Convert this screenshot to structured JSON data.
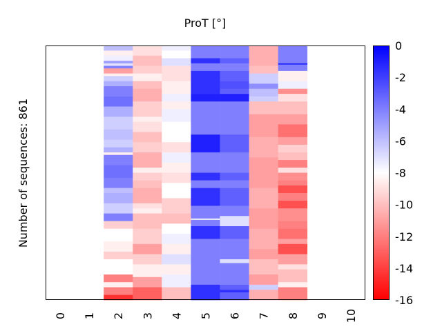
{
  "chart_data": {
    "type": "heatmap",
    "title": "ProT [°]",
    "ylabel": "Number of sequences: 861",
    "xlabel": "",
    "n_rows": 861,
    "x_ticks": [
      "0",
      "1",
      "2",
      "3",
      "4",
      "5",
      "6",
      "7",
      "8",
      "9",
      "10"
    ],
    "colorbar": {
      "ticks": [
        "0",
        "-2",
        "-4",
        "-6",
        "-8",
        "-10",
        "-12",
        "-14",
        "-16"
      ],
      "range": [
        -16,
        0
      ],
      "colormap": "bwr",
      "low_color": "#ff0000",
      "mid_color": "#ffffff",
      "high_color": "#0000ff"
    },
    "columns": [
      {
        "x": 2,
        "segments": [
          [
            0.0,
            -6.0
          ],
          [
            0.02,
            -8.5
          ],
          [
            0.04,
            -7.5
          ],
          [
            0.06,
            -5.0
          ],
          [
            0.07,
            -7.0
          ],
          [
            0.08,
            -4.0
          ],
          [
            0.09,
            -11.0
          ],
          [
            0.11,
            -8.5
          ],
          [
            0.12,
            -6.5
          ],
          [
            0.14,
            -5.5
          ],
          [
            0.16,
            -4.0
          ],
          [
            0.2,
            -3.5
          ],
          [
            0.24,
            -5.5
          ],
          [
            0.28,
            -6.5
          ],
          [
            0.33,
            -6.0
          ],
          [
            0.37,
            -6.5
          ],
          [
            0.4,
            -5.5
          ],
          [
            0.42,
            -8.5
          ],
          [
            0.43,
            -4.0
          ],
          [
            0.47,
            -3.5
          ],
          [
            0.52,
            -4.0
          ],
          [
            0.56,
            -6.0
          ],
          [
            0.58,
            -5.5
          ],
          [
            0.62,
            -6.5
          ],
          [
            0.66,
            -4.0
          ],
          [
            0.69,
            -9.5
          ],
          [
            0.72,
            -8.0
          ],
          [
            0.77,
            -8.5
          ],
          [
            0.81,
            -9.5
          ],
          [
            0.84,
            -8.0
          ],
          [
            0.9,
            -12.0
          ],
          [
            0.93,
            -8.5
          ],
          [
            0.95,
            -12.0
          ],
          [
            0.98,
            -14.5
          ]
        ]
      },
      {
        "x": 3,
        "segments": [
          [
            0.0,
            -9.0
          ],
          [
            0.04,
            -10.0
          ],
          [
            0.08,
            -9.5
          ],
          [
            0.11,
            -8.5
          ],
          [
            0.14,
            -10.0
          ],
          [
            0.17,
            -10.5
          ],
          [
            0.22,
            -9.5
          ],
          [
            0.28,
            -8.5
          ],
          [
            0.3,
            -9.0
          ],
          [
            0.34,
            -10.0
          ],
          [
            0.38,
            -9.5
          ],
          [
            0.42,
            -10.5
          ],
          [
            0.48,
            -8.5
          ],
          [
            0.5,
            -9.5
          ],
          [
            0.53,
            -10.0
          ],
          [
            0.56,
            -10.5
          ],
          [
            0.62,
            -9.0
          ],
          [
            0.64,
            -8.5
          ],
          [
            0.66,
            -10.0
          ],
          [
            0.72,
            -9.5
          ],
          [
            0.78,
            -11.0
          ],
          [
            0.82,
            -9.5
          ],
          [
            0.86,
            -8.5
          ],
          [
            0.91,
            -11.0
          ],
          [
            0.95,
            -13.0
          ]
        ]
      },
      {
        "x": 4,
        "segments": [
          [
            0.0,
            -7.5
          ],
          [
            0.02,
            -8.0
          ],
          [
            0.05,
            -7.0
          ],
          [
            0.08,
            -9.0
          ],
          [
            0.14,
            -8.5
          ],
          [
            0.19,
            -7.5
          ],
          [
            0.22,
            -8.5
          ],
          [
            0.25,
            -7.5
          ],
          [
            0.3,
            -8.0
          ],
          [
            0.38,
            -9.0
          ],
          [
            0.42,
            -7.5
          ],
          [
            0.46,
            -8.5
          ],
          [
            0.5,
            -9.0
          ],
          [
            0.54,
            -8.0
          ],
          [
            0.6,
            -9.5
          ],
          [
            0.66,
            -10.0
          ],
          [
            0.7,
            -8.0
          ],
          [
            0.74,
            -7.5
          ],
          [
            0.78,
            -8.5
          ],
          [
            0.82,
            -7.0
          ],
          [
            0.86,
            -8.5
          ],
          [
            0.9,
            -7.5
          ],
          [
            0.95,
            -10.0
          ]
        ]
      },
      {
        "x": 5,
        "segments": [
          [
            0.0,
            -4.0
          ],
          [
            0.05,
            -1.5
          ],
          [
            0.07,
            -4.0
          ],
          [
            0.1,
            -1.5
          ],
          [
            0.19,
            -1.0
          ],
          [
            0.22,
            -4.0
          ],
          [
            0.35,
            -1.0
          ],
          [
            0.42,
            -4.0
          ],
          [
            0.5,
            -1.5
          ],
          [
            0.53,
            -4.0
          ],
          [
            0.56,
            -1.5
          ],
          [
            0.63,
            -4.0
          ],
          [
            0.68,
            -8.0
          ],
          [
            0.685,
            -4.0
          ],
          [
            0.71,
            -1.5
          ],
          [
            0.76,
            -4.0
          ],
          [
            0.94,
            -1.5
          ]
        ]
      },
      {
        "x": 6,
        "segments": [
          [
            0.0,
            -4.0
          ],
          [
            0.05,
            -3.0
          ],
          [
            0.07,
            -4.0
          ],
          [
            0.1,
            -3.0
          ],
          [
            0.14,
            -2.5
          ],
          [
            0.17,
            -3.0
          ],
          [
            0.19,
            -1.0
          ],
          [
            0.22,
            -4.0
          ],
          [
            0.35,
            -3.0
          ],
          [
            0.42,
            -4.0
          ],
          [
            0.5,
            -3.0
          ],
          [
            0.53,
            -4.0
          ],
          [
            0.56,
            -3.0
          ],
          [
            0.63,
            -4.0
          ],
          [
            0.67,
            -7.0
          ],
          [
            0.71,
            -3.0
          ],
          [
            0.76,
            -4.0
          ],
          [
            0.84,
            -7.0
          ],
          [
            0.855,
            -4.0
          ],
          [
            0.94,
            -3.0
          ],
          [
            0.96,
            -1.5
          ],
          [
            0.97,
            -3.0
          ]
        ]
      },
      {
        "x": 7,
        "segments": [
          [
            0.0,
            -10.5
          ],
          [
            0.07,
            -10.5
          ],
          [
            0.08,
            -10.0
          ],
          [
            0.11,
            -6.5
          ],
          [
            0.15,
            -4.5
          ],
          [
            0.17,
            -6.0
          ],
          [
            0.2,
            -6.5
          ],
          [
            0.22,
            -10.0
          ],
          [
            0.27,
            -11.0
          ],
          [
            0.36,
            -10.5
          ],
          [
            0.44,
            -11.0
          ],
          [
            0.56,
            -10.5
          ],
          [
            0.64,
            -11.0
          ],
          [
            0.72,
            -10.5
          ],
          [
            0.8,
            -11.0
          ],
          [
            0.84,
            -10.0
          ],
          [
            0.9,
            -11.0
          ],
          [
            0.94,
            -6.5
          ],
          [
            0.96,
            -10.5
          ]
        ]
      },
      {
        "x": 8,
        "segments": [
          [
            0.0,
            -4.0
          ],
          [
            0.07,
            -1.0
          ],
          [
            0.075,
            -4.0
          ],
          [
            0.1,
            -8.5
          ],
          [
            0.14,
            -7.5
          ],
          [
            0.17,
            -11.5
          ],
          [
            0.19,
            -9.0
          ],
          [
            0.22,
            -10.0
          ],
          [
            0.27,
            -11.0
          ],
          [
            0.31,
            -12.5
          ],
          [
            0.36,
            -11.0
          ],
          [
            0.39,
            -9.5
          ],
          [
            0.42,
            -10.0
          ],
          [
            0.45,
            -12.0
          ],
          [
            0.48,
            -9.0
          ],
          [
            0.5,
            -11.5
          ],
          [
            0.53,
            -12.0
          ],
          [
            0.55,
            -13.5
          ],
          [
            0.58,
            -12.0
          ],
          [
            0.61,
            -13.5
          ],
          [
            0.64,
            -11.5
          ],
          [
            0.69,
            -12.0
          ],
          [
            0.72,
            -12.5
          ],
          [
            0.76,
            -11.0
          ],
          [
            0.78,
            -13.5
          ],
          [
            0.82,
            -11.0
          ],
          [
            0.86,
            -9.0
          ],
          [
            0.88,
            -10.0
          ],
          [
            0.93,
            -8.5
          ],
          [
            0.95,
            -12.0
          ]
        ]
      }
    ]
  }
}
